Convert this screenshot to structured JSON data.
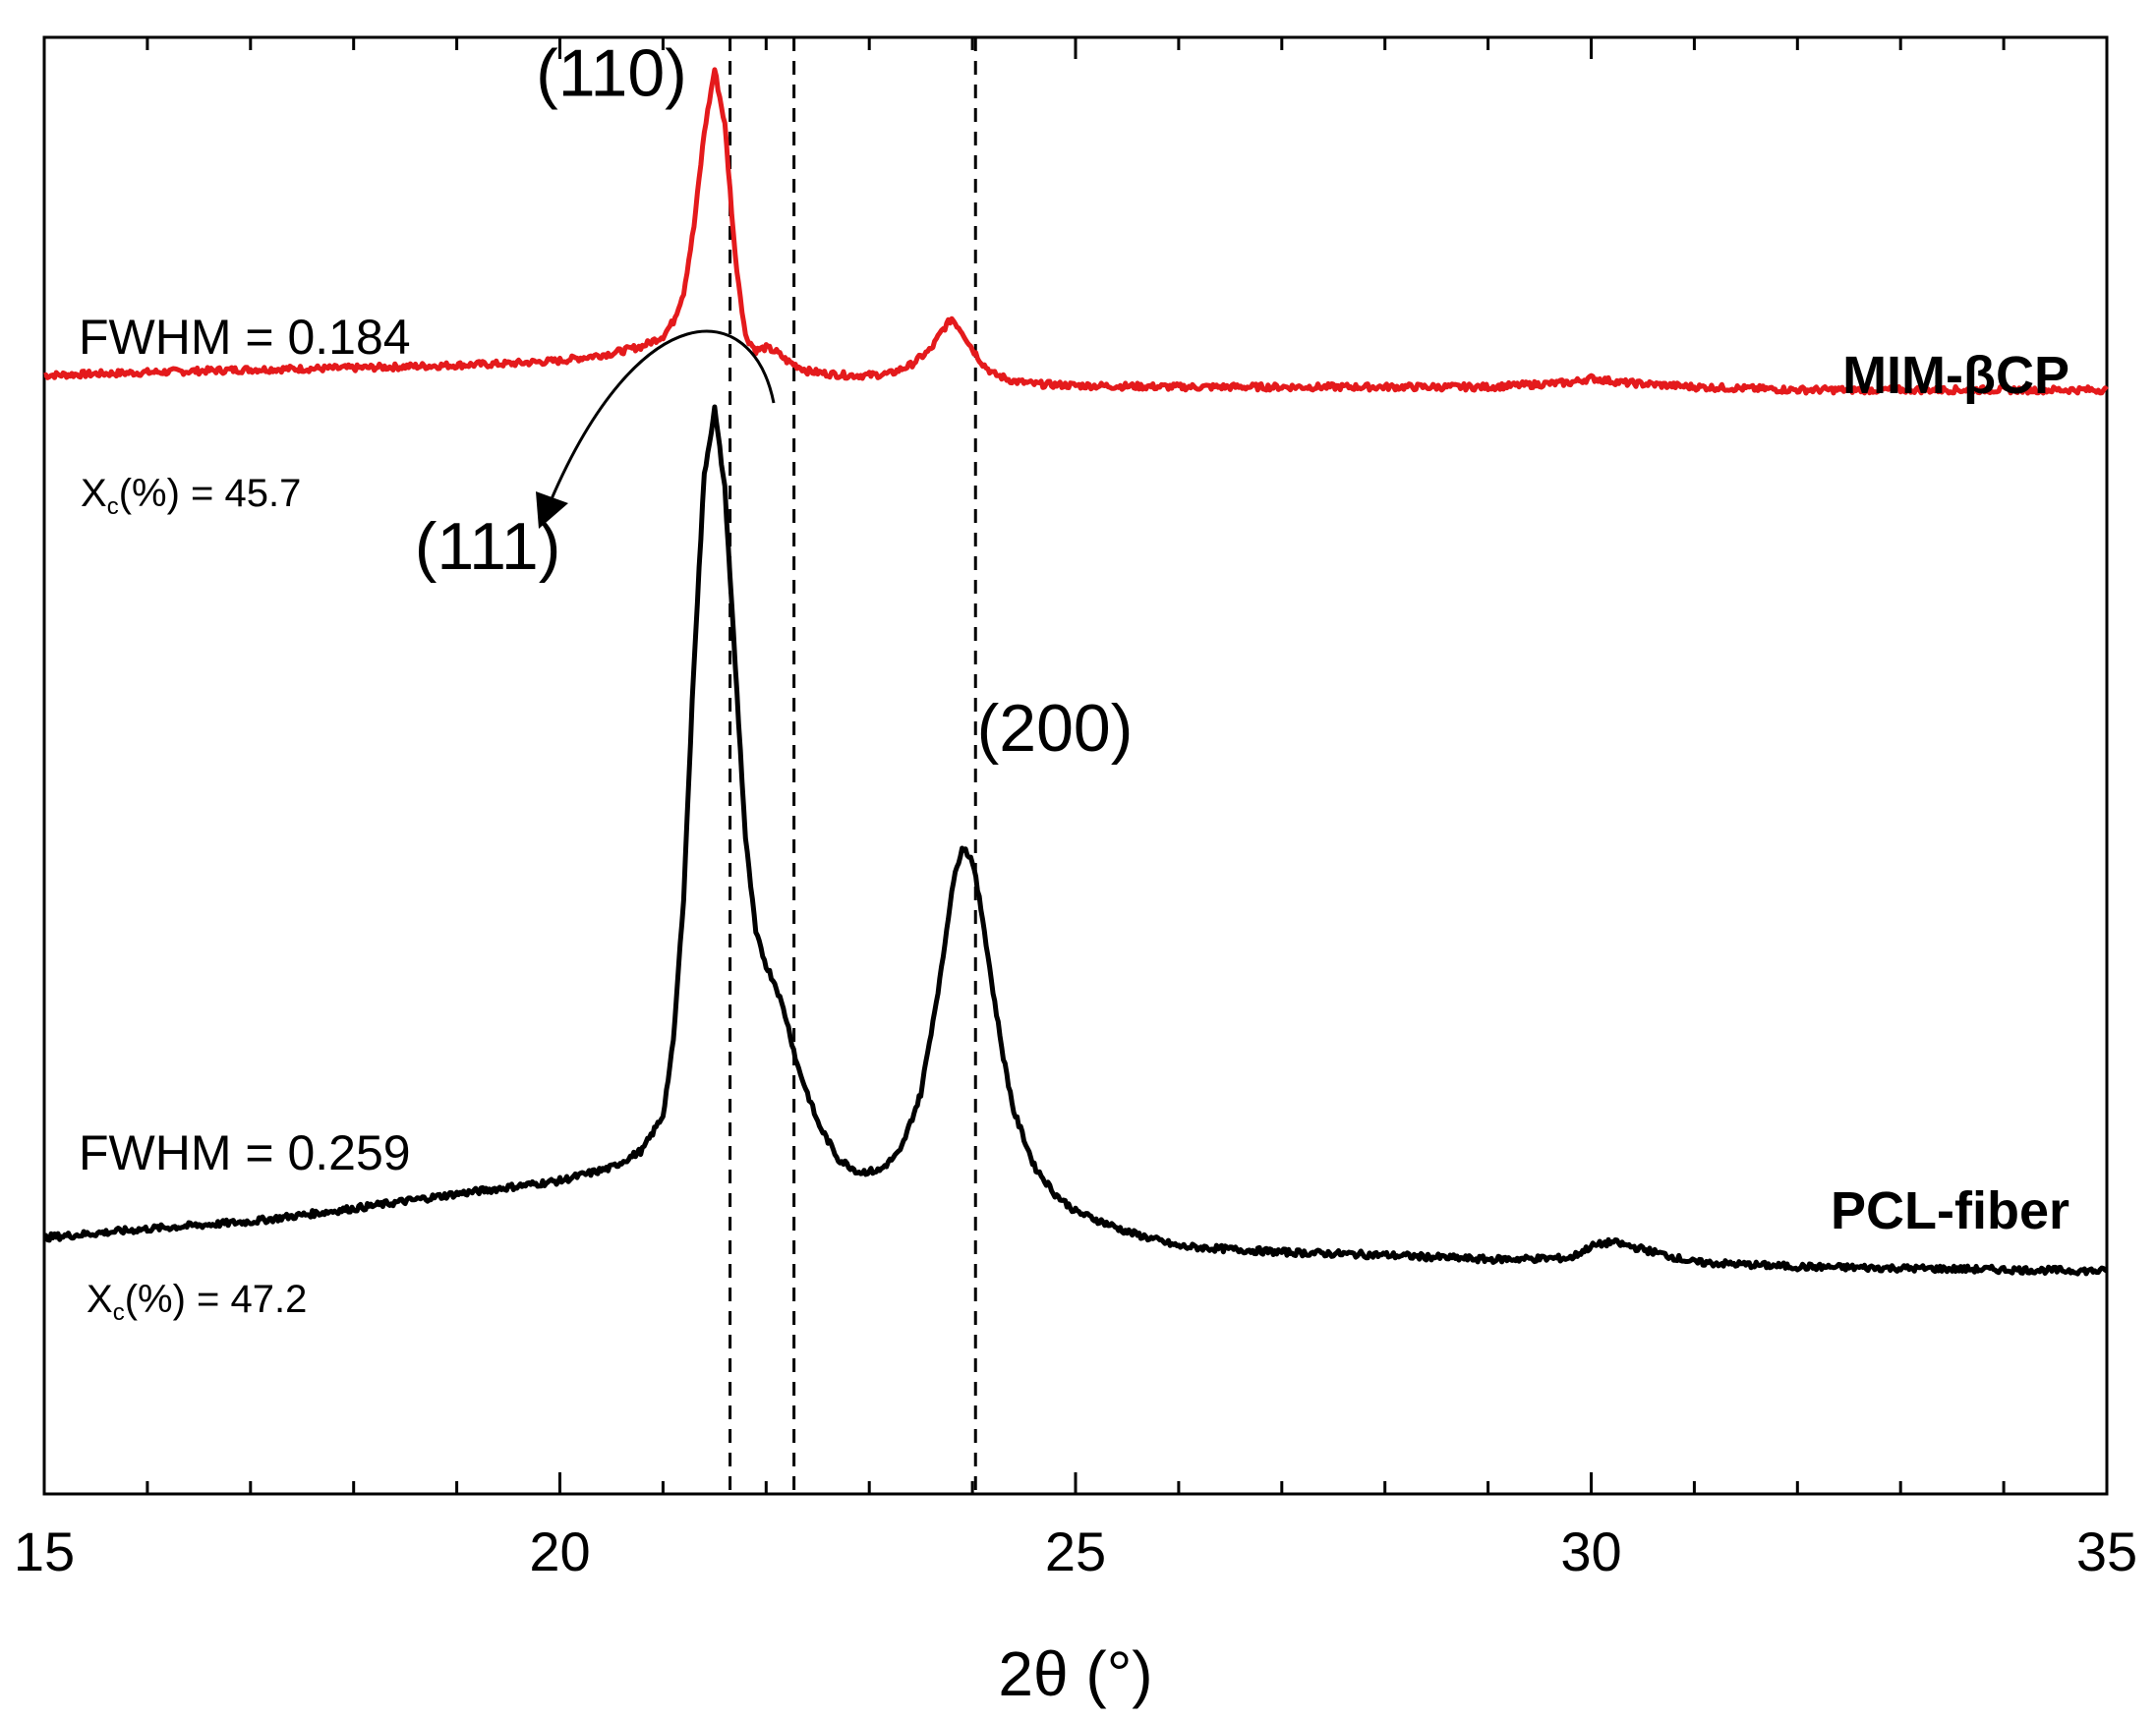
{
  "chart_data": {
    "type": "line",
    "xlabel": "2θ (°)",
    "ylabel": "",
    "xlim": [
      15,
      35
    ],
    "ylim": [
      0,
      100
    ],
    "x_ticks": [
      15,
      20,
      25,
      30,
      35
    ],
    "x_minor_step": 1,
    "series": [
      {
        "name": "MIM-βCP",
        "color": "#e41a1c",
        "x": [
          15,
          16,
          17,
          18,
          19,
          19.5,
          20,
          20.5,
          20.8,
          21.0,
          21.1,
          21.2,
          21.3,
          21.4,
          21.5,
          21.6,
          21.7,
          21.8,
          21.9,
          22.0,
          22.1,
          22.2,
          22.4,
          22.6,
          22.8,
          23.0,
          23.2,
          23.4,
          23.6,
          23.7,
          23.8,
          23.9,
          24.0,
          24.1,
          24.2,
          24.4,
          24.6,
          25,
          26,
          27,
          28,
          29,
          29.8,
          30.0,
          30.3,
          31,
          32,
          33,
          34,
          35
        ],
        "y": [
          76.8,
          77.0,
          77.2,
          77.3,
          77.5,
          77.6,
          77.8,
          78.3,
          78.8,
          79.5,
          80.5,
          82.5,
          87,
          93.5,
          97.8,
          94,
          85,
          79.5,
          78.5,
          78.7,
          78.4,
          77.8,
          77.1,
          76.9,
          76.8,
          76.8,
          76.9,
          77.5,
          78.6,
          79.8,
          80.7,
          79.8,
          78.6,
          77.6,
          76.9,
          76.4,
          76.2,
          76.1,
          76.0,
          76.0,
          76.0,
          76.0,
          76.3,
          76.6,
          76.3,
          76.0,
          75.8,
          75.8,
          75.8,
          75.8
        ]
      },
      {
        "name": "PCL-fiber",
        "color": "#000000",
        "x": [
          15,
          16,
          17,
          18,
          19,
          20,
          20.5,
          20.8,
          21.0,
          21.1,
          21.2,
          21.3,
          21.4,
          21.5,
          21.6,
          21.7,
          21.8,
          21.9,
          22.0,
          22.1,
          22.2,
          22.3,
          22.5,
          22.7,
          22.9,
          23.1,
          23.3,
          23.5,
          23.7,
          23.8,
          23.9,
          24.0,
          24.1,
          24.2,
          24.3,
          24.4,
          24.6,
          24.8,
          25.0,
          25.5,
          26,
          27,
          28,
          29,
          29.8,
          30.0,
          30.2,
          30.5,
          31,
          32,
          33,
          34,
          35
        ],
        "y": [
          17.6,
          18.2,
          18.7,
          19.6,
          20.6,
          21.5,
          22.4,
          23.6,
          26,
          31,
          41,
          57,
          70,
          74.5,
          69,
          57,
          45,
          38.5,
          36.3,
          34.8,
          32.5,
          29.5,
          25.5,
          23.0,
          22.1,
          22.2,
          23.5,
          27.5,
          36,
          41.5,
          44.5,
          43.5,
          39.5,
          34.5,
          30,
          26.3,
          22.5,
          20.6,
          19.4,
          18.0,
          17.0,
          16.6,
          16.4,
          16.1,
          16.2,
          17.0,
          17.3,
          16.8,
          15.9,
          15.6,
          15.5,
          15.4,
          15.3
        ]
      }
    ],
    "reference_lines_x": [
      21.65,
      22.27,
      24.03
    ],
    "peak_labels": [
      {
        "text": "(110)",
        "x": 20.5,
        "y": 96
      },
      {
        "text": "(111)",
        "x": 19.3,
        "y": 63.5
      },
      {
        "text": "(200)",
        "x": 24.8,
        "y": 51
      }
    ],
    "annotations": {
      "mim_fwhm": "FWHM = 0.184",
      "mim_xc_x": "X",
      "mim_xc_sub": "c",
      "mim_xc_rest": "(%) = 45.7",
      "pcl_fwhm": "FWHM = 0.259",
      "pcl_xc_x": "X",
      "pcl_xc_sub": "c",
      "pcl_xc_rest": "(%) = 47.2"
    },
    "series_labels": [
      "MIM-βCP",
      "PCL-fiber"
    ]
  }
}
